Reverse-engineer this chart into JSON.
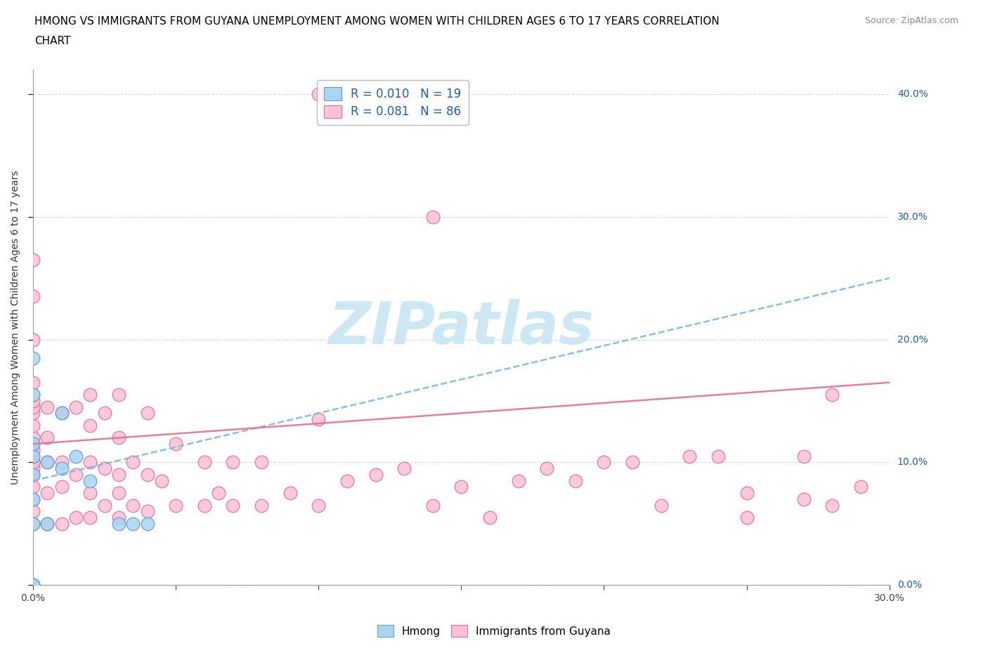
{
  "title_line1": "HMONG VS IMMIGRANTS FROM GUYANA UNEMPLOYMENT AMONG WOMEN WITH CHILDREN AGES 6 TO 17 YEARS CORRELATION",
  "title_line2": "CHART",
  "source_text": "Source: ZipAtlas.com",
  "ylabel": "Unemployment Among Women with Children Ages 6 to 17 years",
  "x_min": 0.0,
  "x_max": 0.3,
  "y_min": 0.0,
  "y_max": 0.42,
  "hmong_color": "#aad4f0",
  "hmong_edge_color": "#5aa0d0",
  "guyana_color": "#ffc0d8",
  "guyana_edge_color": "#e07090",
  "trendline_hmong_color": "#7ab8e0",
  "trendline_guyana_color": "#e07090",
  "legend_r_hmong": "R = 0.010",
  "legend_n_hmong": "N = 19",
  "legend_r_guyana": "R = 0.081",
  "legend_n_guyana": "N = 86",
  "legend_text_color": "#1a5fa8",
  "right_tick_color": "#1a5fa8",
  "watermark_color": "#cde8f5",
  "hmong_x": [
    0.0,
    0.0,
    0.0,
    0.0,
    0.0,
    0.0,
    0.0,
    0.0,
    0.0,
    0.005,
    0.005,
    0.01,
    0.01,
    0.015,
    0.02,
    0.03,
    0.035,
    0.04,
    0.0
  ],
  "hmong_y": [
    0.0,
    0.0,
    0.0,
    0.05,
    0.07,
    0.09,
    0.105,
    0.115,
    0.185,
    0.05,
    0.1,
    0.095,
    0.14,
    0.105,
    0.085,
    0.05,
    0.05,
    0.05,
    0.155
  ],
  "guyana_x": [
    0.0,
    0.0,
    0.0,
    0.0,
    0.0,
    0.0,
    0.0,
    0.0,
    0.0,
    0.0,
    0.0,
    0.0,
    0.0,
    0.0,
    0.0,
    0.0,
    0.0,
    0.0,
    0.0,
    0.0,
    0.005,
    0.005,
    0.005,
    0.005,
    0.005,
    0.01,
    0.01,
    0.01,
    0.01,
    0.015,
    0.015,
    0.015,
    0.02,
    0.02,
    0.02,
    0.02,
    0.02,
    0.025,
    0.025,
    0.025,
    0.03,
    0.03,
    0.03,
    0.03,
    0.03,
    0.035,
    0.035,
    0.04,
    0.04,
    0.04,
    0.045,
    0.05,
    0.05,
    0.06,
    0.06,
    0.065,
    0.07,
    0.07,
    0.08,
    0.08,
    0.09,
    0.1,
    0.1,
    0.11,
    0.12,
    0.13,
    0.14,
    0.15,
    0.16,
    0.17,
    0.18,
    0.19,
    0.2,
    0.21,
    0.22,
    0.23,
    0.24,
    0.25,
    0.27,
    0.28,
    0.1,
    0.14,
    0.27,
    0.25,
    0.28,
    0.29
  ],
  "guyana_y": [
    0.05,
    0.06,
    0.07,
    0.08,
    0.09,
    0.095,
    0.1,
    0.105,
    0.11,
    0.115,
    0.12,
    0.13,
    0.14,
    0.145,
    0.15,
    0.155,
    0.165,
    0.2,
    0.235,
    0.265,
    0.05,
    0.075,
    0.1,
    0.12,
    0.145,
    0.05,
    0.08,
    0.1,
    0.14,
    0.055,
    0.09,
    0.145,
    0.055,
    0.075,
    0.1,
    0.13,
    0.155,
    0.065,
    0.095,
    0.14,
    0.055,
    0.075,
    0.09,
    0.12,
    0.155,
    0.065,
    0.1,
    0.06,
    0.09,
    0.14,
    0.085,
    0.065,
    0.115,
    0.065,
    0.1,
    0.075,
    0.065,
    0.1,
    0.065,
    0.1,
    0.075,
    0.065,
    0.135,
    0.085,
    0.09,
    0.095,
    0.065,
    0.08,
    0.055,
    0.085,
    0.095,
    0.085,
    0.1,
    0.1,
    0.065,
    0.105,
    0.105,
    0.075,
    0.105,
    0.155,
    0.4,
    0.3,
    0.07,
    0.055,
    0.065,
    0.08
  ],
  "trend_hmong_x0": 0.0,
  "trend_hmong_y0": 0.085,
  "trend_hmong_x1": 0.3,
  "trend_hmong_y1": 0.25,
  "trend_guyana_x0": 0.0,
  "trend_guyana_y0": 0.115,
  "trend_guyana_x1": 0.3,
  "trend_guyana_y1": 0.165
}
